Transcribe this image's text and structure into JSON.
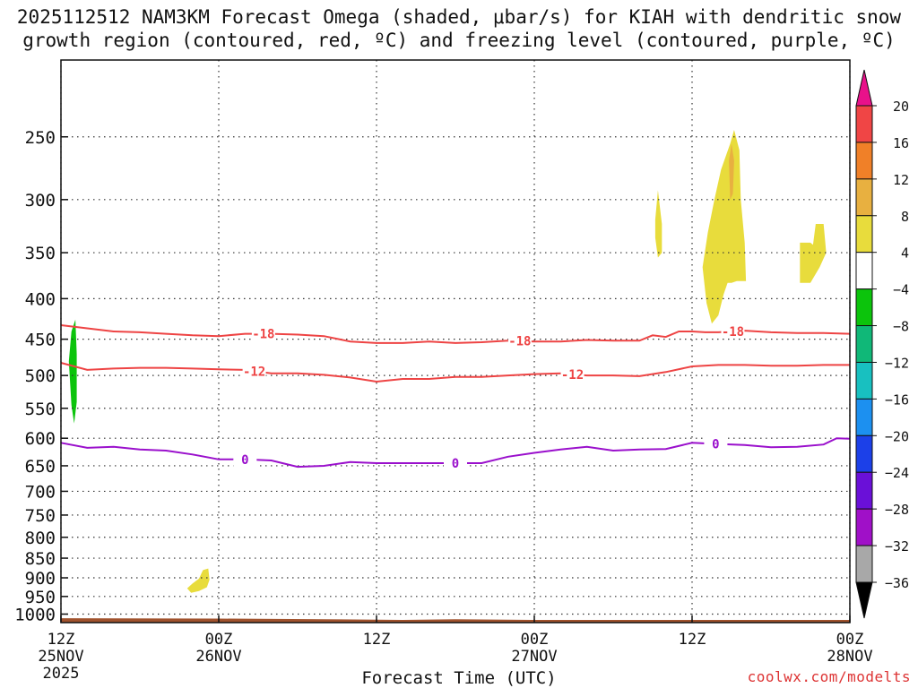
{
  "title_line1": "2025112512 NAM3KM Forecast Omega (shaded, μbar/s) for KIAH with dendritic snow",
  "title_line2": "growth region (contoured, red, ºC) and freezing level (contoured, purple, ºC)",
  "credit": "coolwx.com/modelts",
  "chart_data": {
    "type": "heatmap",
    "title": "2025112512 NAM3KM Forecast Omega (shaded, μbar/s) for KIAH with dendritic snow growth region (contoured, red, ºC) and freezing level (contoured, purple, ºC)",
    "xlabel": "Forecast Time (UTC)",
    "x_unit": "forecast hour",
    "xlim": [
      0,
      60
    ],
    "x_ticks": [
      {
        "hour": 0,
        "label": [
          "12Z",
          "25NOV",
          "2025"
        ]
      },
      {
        "hour": 12,
        "label": [
          "00Z",
          "26NOV"
        ]
      },
      {
        "hour": 24,
        "label": [
          "12Z"
        ]
      },
      {
        "hour": 36,
        "label": [
          "00Z",
          "27NOV"
        ]
      },
      {
        "hour": 48,
        "label": [
          "12Z"
        ]
      },
      {
        "hour": 60,
        "label": [
          "00Z",
          "28NOV"
        ]
      }
    ],
    "ylabel": "",
    "y_unit": "hPa",
    "y_scale": "log",
    "ylim": [
      1025,
      200
    ],
    "y_ticks": [
      250,
      300,
      350,
      400,
      450,
      500,
      550,
      600,
      650,
      700,
      750,
      800,
      850,
      900,
      950,
      1000
    ],
    "grid": true,
    "colorbar": {
      "labels": [
        20,
        16,
        12,
        8,
        4,
        -4,
        -8,
        -12,
        -16,
        -20,
        -24,
        -28,
        -32,
        -36
      ],
      "bins": [
        {
          "range": ">20",
          "color": "#e8118a"
        },
        {
          "range": "16 to 20",
          "color": "#f04545"
        },
        {
          "range": "12 to 16",
          "color": "#f08028"
        },
        {
          "range": "8 to 12",
          "color": "#e8b040"
        },
        {
          "range": "4 to 8",
          "color": "#e8dc3c"
        },
        {
          "range": "-4 to 4",
          "color": "#ffffff"
        },
        {
          "range": "-8 to -4",
          "color": "#0cc40c"
        },
        {
          "range": "-12 to -8",
          "color": "#10b878"
        },
        {
          "range": "-16 to -12",
          "color": "#18c0c0"
        },
        {
          "range": "-20 to -16",
          "color": "#1c90f0"
        },
        {
          "range": "-24 to -20",
          "color": "#1c40e8"
        },
        {
          "range": "-28 to -24",
          "color": "#6a10d8"
        },
        {
          "range": "-32 to -28",
          "color": "#a010c8"
        },
        {
          "range": "-36 to -32",
          "color": "#a8a8a8"
        },
        {
          "range": "<-36",
          "color": "#000000"
        }
      ]
    },
    "shaded_regions": [
      {
        "value_bin": "-8 to -4",
        "color": "#0cc40c",
        "points": [
          [
            0.8,
            440
          ],
          [
            1.1,
            425
          ],
          [
            1.2,
            470
          ],
          [
            1.2,
            540
          ],
          [
            1.0,
            575
          ],
          [
            0.8,
            545
          ],
          [
            0.6,
            480
          ]
        ]
      },
      {
        "value_bin": "4 to 8",
        "color": "#e8dc3c",
        "points": [
          [
            9.6,
            928
          ],
          [
            10.0,
            915
          ],
          [
            10.5,
            902
          ],
          [
            10.8,
            880
          ],
          [
            11.2,
            876
          ],
          [
            11.3,
            905
          ],
          [
            11.1,
            925
          ],
          [
            10.5,
            935
          ],
          [
            9.9,
            940
          ]
        ]
      },
      {
        "value_bin": "4 to 8",
        "color": "#e8dc3c",
        "points": [
          [
            45.2,
            318
          ],
          [
            45.4,
            292
          ],
          [
            45.7,
            322
          ],
          [
            45.7,
            350
          ],
          [
            45.4,
            355
          ],
          [
            45.2,
            335
          ]
        ]
      },
      {
        "value_bin": "4 to 8",
        "color": "#e8dc3c",
        "points": [
          [
            48.8,
            365
          ],
          [
            49.2,
            330
          ],
          [
            49.7,
            300
          ],
          [
            50.2,
            275
          ],
          [
            50.9,
            255
          ],
          [
            51.2,
            245
          ],
          [
            51.6,
            260
          ],
          [
            51.7,
            300
          ],
          [
            52.0,
            340
          ],
          [
            52.1,
            380
          ],
          [
            51.4,
            380
          ],
          [
            51.0,
            382
          ],
          [
            50.7,
            382
          ],
          [
            50.4,
            395
          ],
          [
            50.0,
            420
          ],
          [
            49.5,
            430
          ],
          [
            49.1,
            405
          ]
        ]
      },
      {
        "value_bin": "4 to 8",
        "color": "#e8dc3c",
        "points": [
          [
            56.2,
            340
          ],
          [
            57.0,
            340
          ],
          [
            57.2,
            342
          ],
          [
            57.4,
            322
          ],
          [
            58.0,
            322
          ],
          [
            58.2,
            350
          ],
          [
            57.7,
            365
          ],
          [
            57.0,
            382
          ],
          [
            56.2,
            382
          ]
        ]
      },
      {
        "value_bin": "8 to 12",
        "color": "#e8b040",
        "points": [
          [
            50.8,
            268
          ],
          [
            51.0,
            255
          ],
          [
            51.2,
            268
          ],
          [
            51.1,
            295
          ],
          [
            50.9,
            300
          ]
        ]
      }
    ],
    "series": [
      {
        "name": "-18",
        "color": "#ee4444",
        "label_hours": [
          15.4,
          34.9,
          51.1
        ],
        "x": [
          0,
          2,
          4,
          6,
          8,
          10,
          12,
          14,
          16,
          18,
          20,
          22,
          24,
          26,
          28,
          30,
          32,
          34,
          36,
          38,
          40,
          42,
          44,
          45,
          46,
          47,
          48,
          49,
          50,
          52,
          54,
          56,
          58,
          60
        ],
        "y": [
          432,
          436,
          440,
          441,
          443,
          445,
          446,
          443,
          443,
          444,
          446,
          453,
          455,
          455,
          453,
          455,
          454,
          452,
          453,
          453,
          451,
          452,
          452,
          445,
          447,
          440,
          440,
          441,
          441,
          439,
          441,
          442,
          442,
          443
        ]
      },
      {
        "name": "-12",
        "color": "#ee4444",
        "label_hours": [
          14.7,
          38.9
        ],
        "x": [
          0,
          2,
          4,
          6,
          8,
          10,
          12,
          14,
          16,
          18,
          20,
          22,
          24,
          26,
          28,
          30,
          32,
          34,
          36,
          38,
          40,
          42,
          44,
          46,
          48,
          50,
          52,
          54,
          56,
          58,
          60
        ],
        "y": [
          482,
          492,
          490,
          489,
          489,
          490,
          491,
          492,
          497,
          497,
          499,
          503,
          509,
          505,
          505,
          502,
          502,
          500,
          498,
          497,
          500,
          500,
          501,
          495,
          487,
          485,
          485,
          486,
          486,
          485,
          485
        ]
      },
      {
        "name": "0",
        "color": "#9a10cc",
        "label_hours": [
          14.0,
          30.0,
          49.8
        ],
        "x": [
          0,
          2,
          4,
          6,
          8,
          10,
          12,
          14,
          16,
          18,
          20,
          22,
          24,
          26,
          28,
          30,
          32,
          34,
          36,
          38,
          40,
          42,
          44,
          46,
          48,
          50,
          52,
          54,
          56,
          58,
          59,
          60
        ],
        "y": [
          608,
          617,
          615,
          620,
          622,
          629,
          638,
          638,
          640,
          652,
          650,
          643,
          645,
          645,
          645,
          645,
          645,
          633,
          626,
          620,
          615,
          622,
          620,
          619,
          608,
          610,
          612,
          616,
          615,
          611,
          600,
          601
        ]
      }
    ],
    "terrain": {
      "color": "#a0522d",
      "base_hpa": 1025,
      "x": [
        0,
        12,
        20,
        26,
        30,
        36,
        60
      ],
      "y": [
        1012,
        1013,
        1015,
        1017,
        1015,
        1017,
        1017
      ]
    },
    "annotation_labels": {
      "-18": "-18",
      "-12": "-12",
      "0": "0"
    }
  }
}
